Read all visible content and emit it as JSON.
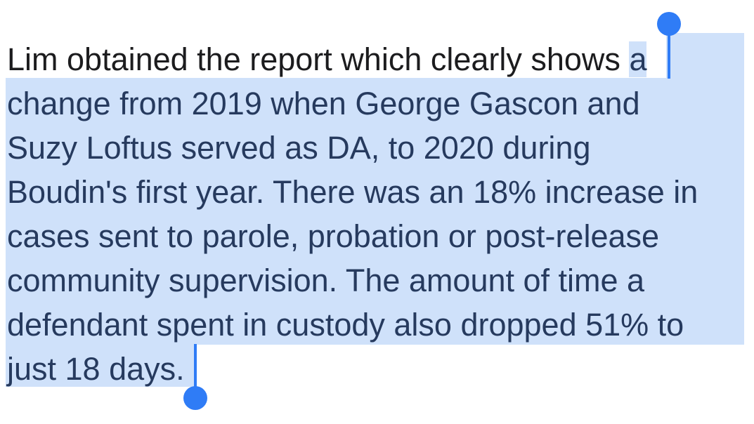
{
  "paragraph": {
    "line0_unselected": "Lim obtained the report which clearly shows ",
    "line0_selected": "a",
    "line1": "change from 2019 when George Gascon and",
    "line2": "Suzy Loftus served as DA, to 2020 during",
    "line3": "Boudin's first year. There was an 18% increase in",
    "line4": "cases sent to parole, probation or post-release",
    "line5": "community supervision. The amount of time a",
    "line6": "defendant spent in custody also dropped 51% to",
    "line7": "just 18 days."
  },
  "colors": {
    "selection_highlight": "#cfe1fa",
    "selection_handle": "#2f7cf6",
    "text": "#1c1c1e",
    "selected_text": "#263a5e"
  },
  "icons": {
    "selection_start": "selection-start-handle-icon",
    "selection_end": "selection-end-handle-icon"
  }
}
